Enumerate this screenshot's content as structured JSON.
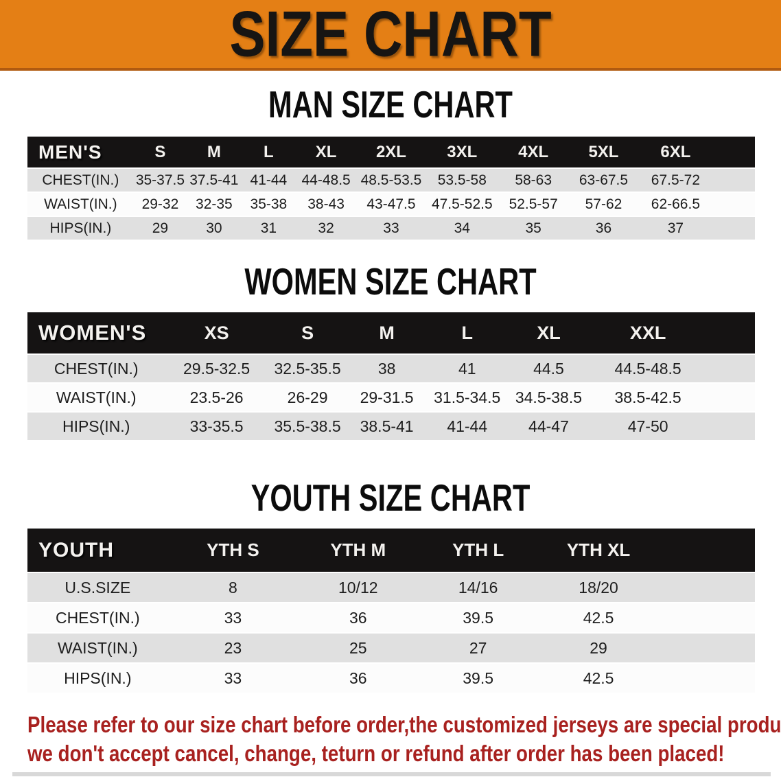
{
  "banner": {
    "title": "SIZE CHART",
    "bg_color": "#e47f15",
    "text_color": "#171513"
  },
  "colors": {
    "table_header_bg": "#151313",
    "row_gray": "#e0e0e0",
    "row_white": "#fcfcfc",
    "footer_red": "#a8211f"
  },
  "sections": [
    {
      "title": "MAN SIZE CHART",
      "header_label": "MEN'S",
      "columns": [
        "S",
        "M",
        "L",
        "XL",
        "2XL",
        "3XL",
        "4XL",
        "5XL",
        "6XL"
      ],
      "rows": [
        {
          "label": "CHEST(IN.)",
          "values": [
            "35-37.5",
            "37.5-41",
            "41-44",
            "44-48.5",
            "48.5-53.5",
            "53.5-58",
            "58-63",
            "63-67.5",
            "67.5-72"
          ]
        },
        {
          "label": "WAIST(IN.)",
          "values": [
            "29-32",
            "32-35",
            "35-38",
            "38-43",
            "43-47.5",
            "47.5-52.5",
            "52.5-57",
            "57-62",
            "62-66.5"
          ]
        },
        {
          "label": "HIPS(IN.)",
          "values": [
            "29",
            "30",
            "31",
            "32",
            "33",
            "34",
            "35",
            "36",
            "37"
          ]
        }
      ]
    },
    {
      "title": "WOMEN SIZE CHART",
      "header_label": "WOMEN'S",
      "columns": [
        "XS",
        "S",
        "M",
        "L",
        "XL",
        "XXL"
      ],
      "rows": [
        {
          "label": "CHEST(IN.)",
          "values": [
            "29.5-32.5",
            "32.5-35.5",
            "38",
            "41",
            "44.5",
            "44.5-48.5"
          ]
        },
        {
          "label": "WAIST(IN.)",
          "values": [
            "23.5-26",
            "26-29",
            "29-31.5",
            "31.5-34.5",
            "34.5-38.5",
            "38.5-42.5"
          ]
        },
        {
          "label": "HIPS(IN.)",
          "values": [
            "33-35.5",
            "35.5-38.5",
            "38.5-41",
            "41-44",
            "44-47",
            "47-50"
          ]
        }
      ]
    },
    {
      "title": "YOUTH SIZE CHART",
      "header_label": "YOUTH",
      "columns": [
        "YTH S",
        "YTH M",
        "YTH L",
        "YTH XL"
      ],
      "rows": [
        {
          "label": "U.S.SIZE",
          "values": [
            "8",
            "10/12",
            "14/16",
            "18/20"
          ]
        },
        {
          "label": "CHEST(IN.)",
          "values": [
            "33",
            "36",
            "39.5",
            "42.5"
          ]
        },
        {
          "label": "WAIST(IN.)",
          "values": [
            "23",
            "25",
            "27",
            "29"
          ]
        },
        {
          "label": "HIPS(IN.)",
          "values": [
            "33",
            "36",
            "39.5",
            "42.5"
          ]
        }
      ]
    }
  ],
  "footer": {
    "line1": "Please refer to our size chart before order,the customized jerseys are special products,",
    "line2": "we don't accept cancel, change, teturn or refund after order has been placed!"
  }
}
